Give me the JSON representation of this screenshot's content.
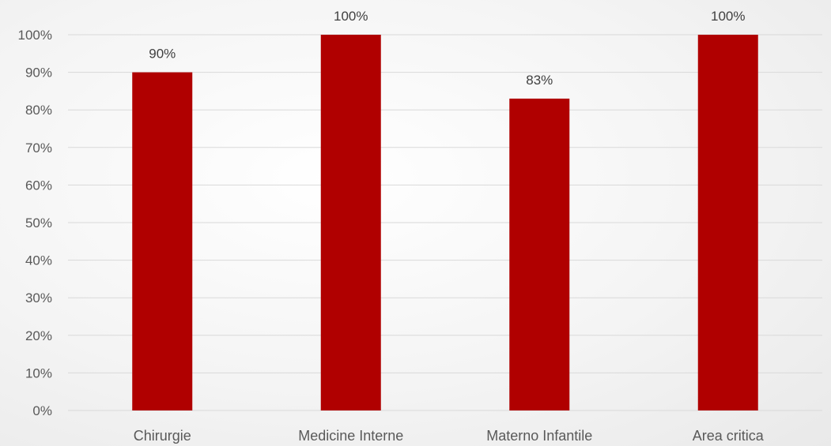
{
  "chart_data": {
    "type": "bar",
    "categories": [
      "Chirurgie",
      "Medicine Interne",
      "Materno Infantile",
      "Area critica"
    ],
    "values": [
      90,
      100,
      83,
      100
    ],
    "data_labels": [
      "90%",
      "100%",
      "83%",
      "100%"
    ],
    "y_ticks": [
      0,
      10,
      20,
      30,
      40,
      50,
      60,
      70,
      80,
      90,
      100
    ],
    "y_tick_labels": [
      "0%",
      "10%",
      "20%",
      "30%",
      "40%",
      "50%",
      "60%",
      "70%",
      "80%",
      "90%",
      "100%"
    ],
    "ylim": [
      0,
      100
    ],
    "title": "",
    "xlabel": "",
    "ylabel": "",
    "grid": true,
    "legend": "none",
    "bar_color": "#b00000"
  }
}
